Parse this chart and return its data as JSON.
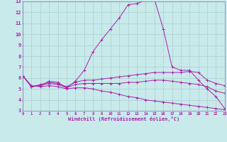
{
  "xlabel": "Windchill (Refroidissement éolien,°C)",
  "background_color": "#c8eaea",
  "grid_color": "#aacece",
  "line_color": "#aa22aa",
  "spine_color": "#7777bb",
  "xlim": [
    0,
    23
  ],
  "ylim": [
    3,
    13
  ],
  "xticks": [
    0,
    1,
    2,
    3,
    4,
    5,
    6,
    7,
    8,
    9,
    10,
    11,
    12,
    13,
    14,
    15,
    16,
    17,
    18,
    19,
    20,
    21,
    22,
    23
  ],
  "yticks": [
    3,
    4,
    5,
    6,
    7,
    8,
    9,
    10,
    11,
    12,
    13
  ],
  "lines": [
    {
      "x": [
        0,
        1,
        2,
        3,
        4,
        5,
        6,
        7,
        8,
        9,
        10,
        11,
        12,
        13,
        14,
        15,
        16,
        17,
        18,
        19,
        20,
        21,
        22,
        23
      ],
      "y": [
        6.2,
        5.2,
        5.3,
        5.7,
        5.6,
        5.1,
        5.7,
        6.7,
        8.4,
        9.5,
        10.5,
        11.5,
        12.7,
        12.8,
        13.1,
        13.2,
        10.5,
        7.0,
        6.7,
        6.7,
        5.8,
        5.0,
        4.3,
        3.2
      ]
    },
    {
      "x": [
        0,
        1,
        2,
        3,
        4,
        5,
        6,
        7,
        8,
        9,
        10,
        11,
        12,
        13,
        14,
        15,
        16,
        17,
        18,
        19,
        20,
        21,
        22,
        23
      ],
      "y": [
        6.2,
        5.2,
        5.4,
        5.6,
        5.5,
        5.2,
        5.6,
        5.8,
        5.8,
        5.9,
        6.0,
        6.1,
        6.2,
        6.3,
        6.4,
        6.5,
        6.5,
        6.5,
        6.5,
        6.6,
        6.5,
        5.8,
        5.5,
        5.3
      ]
    },
    {
      "x": [
        0,
        1,
        2,
        3,
        4,
        5,
        6,
        7,
        8,
        9,
        10,
        11,
        12,
        13,
        14,
        15,
        16,
        17,
        18,
        19,
        20,
        21,
        22,
        23
      ],
      "y": [
        6.2,
        5.2,
        5.3,
        5.5,
        5.4,
        5.1,
        5.4,
        5.5,
        5.5,
        5.5,
        5.5,
        5.5,
        5.6,
        5.6,
        5.7,
        5.8,
        5.8,
        5.7,
        5.6,
        5.5,
        5.4,
        5.2,
        4.8,
        4.6
      ]
    },
    {
      "x": [
        0,
        1,
        2,
        3,
        4,
        5,
        6,
        7,
        8,
        9,
        10,
        11,
        12,
        13,
        14,
        15,
        16,
        17,
        18,
        19,
        20,
        21,
        22,
        23
      ],
      "y": [
        6.2,
        5.3,
        5.2,
        5.3,
        5.2,
        5.0,
        5.1,
        5.1,
        5.0,
        4.8,
        4.7,
        4.5,
        4.3,
        4.2,
        4.0,
        3.9,
        3.8,
        3.7,
        3.6,
        3.5,
        3.4,
        3.3,
        3.2,
        3.1
      ]
    }
  ]
}
